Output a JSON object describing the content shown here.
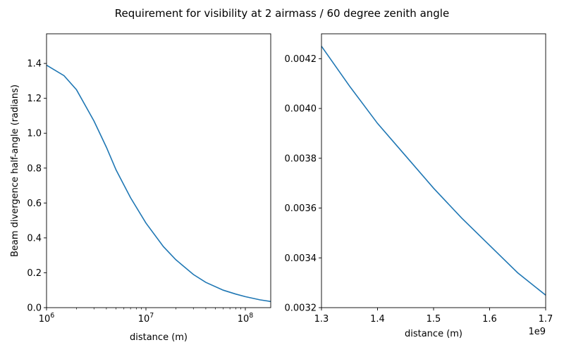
{
  "figure": {
    "suptitle": "Requirement for visibility at 2 airmass / 60 degree zenith angle"
  },
  "colors": {
    "line": "#1f77b4",
    "axes": "#000000",
    "background": "#ffffff"
  },
  "chart_data": [
    {
      "type": "line",
      "title": "",
      "xlabel": "distance (m)",
      "ylabel": "Beam divergence half-angle (radians)",
      "xscale": "log",
      "xlim": [
        1000000,
        180000000
      ],
      "ylim": [
        0.0,
        1.57
      ],
      "grid": false,
      "x_tick_labels": [
        {
          "value": 1000000,
          "base": "10",
          "exp": "6"
        },
        {
          "value": 10000000,
          "base": "10",
          "exp": "7"
        },
        {
          "value": 100000000,
          "base": "10",
          "exp": "8"
        }
      ],
      "y_ticks": [
        0.0,
        0.2,
        0.4,
        0.6,
        0.8,
        1.0,
        1.2,
        1.4
      ],
      "y_tick_labels": [
        "0.0",
        "0.2",
        "0.4",
        "0.6",
        "0.8",
        "1.0",
        "1.2",
        "1.4"
      ],
      "series": [
        {
          "color": "#1f77b4",
          "x": [
            1000000,
            1500000,
            2000000,
            3000000,
            4000000,
            5000000,
            7000000,
            10000000,
            15000000,
            20000000,
            30000000,
            40000000,
            60000000,
            80000000,
            100000000,
            140000000,
            180000000
          ],
          "y": [
            1.39,
            1.33,
            1.25,
            1.07,
            0.92,
            0.79,
            0.63,
            0.485,
            0.35,
            0.275,
            0.19,
            0.145,
            0.1,
            0.078,
            0.063,
            0.045,
            0.035
          ]
        }
      ]
    },
    {
      "type": "line",
      "title": "",
      "xlabel": "distance (m)",
      "ylabel": "",
      "xscale": "linear",
      "x_offset_label": "1e9",
      "xlim": [
        1.3,
        1.7
      ],
      "ylim": [
        0.0032,
        0.0043
      ],
      "grid": false,
      "x_ticks": [
        1.3,
        1.4,
        1.5,
        1.6,
        1.7
      ],
      "x_tick_labels": [
        "1.3",
        "1.4",
        "1.5",
        "1.6",
        "1.7"
      ],
      "y_ticks": [
        0.0032,
        0.0034,
        0.0036,
        0.0038,
        0.004,
        0.0042
      ],
      "y_tick_labels": [
        "0.0032",
        "0.0034",
        "0.0036",
        "0.0038",
        "0.0040",
        "0.0042"
      ],
      "series": [
        {
          "color": "#1f77b4",
          "x": [
            1.3,
            1.35,
            1.4,
            1.45,
            1.5,
            1.55,
            1.6,
            1.65,
            1.7
          ],
          "y": [
            0.00425,
            0.00409,
            0.00394,
            0.00381,
            0.00368,
            0.00356,
            0.00345,
            0.00334,
            0.00325
          ]
        }
      ]
    }
  ]
}
